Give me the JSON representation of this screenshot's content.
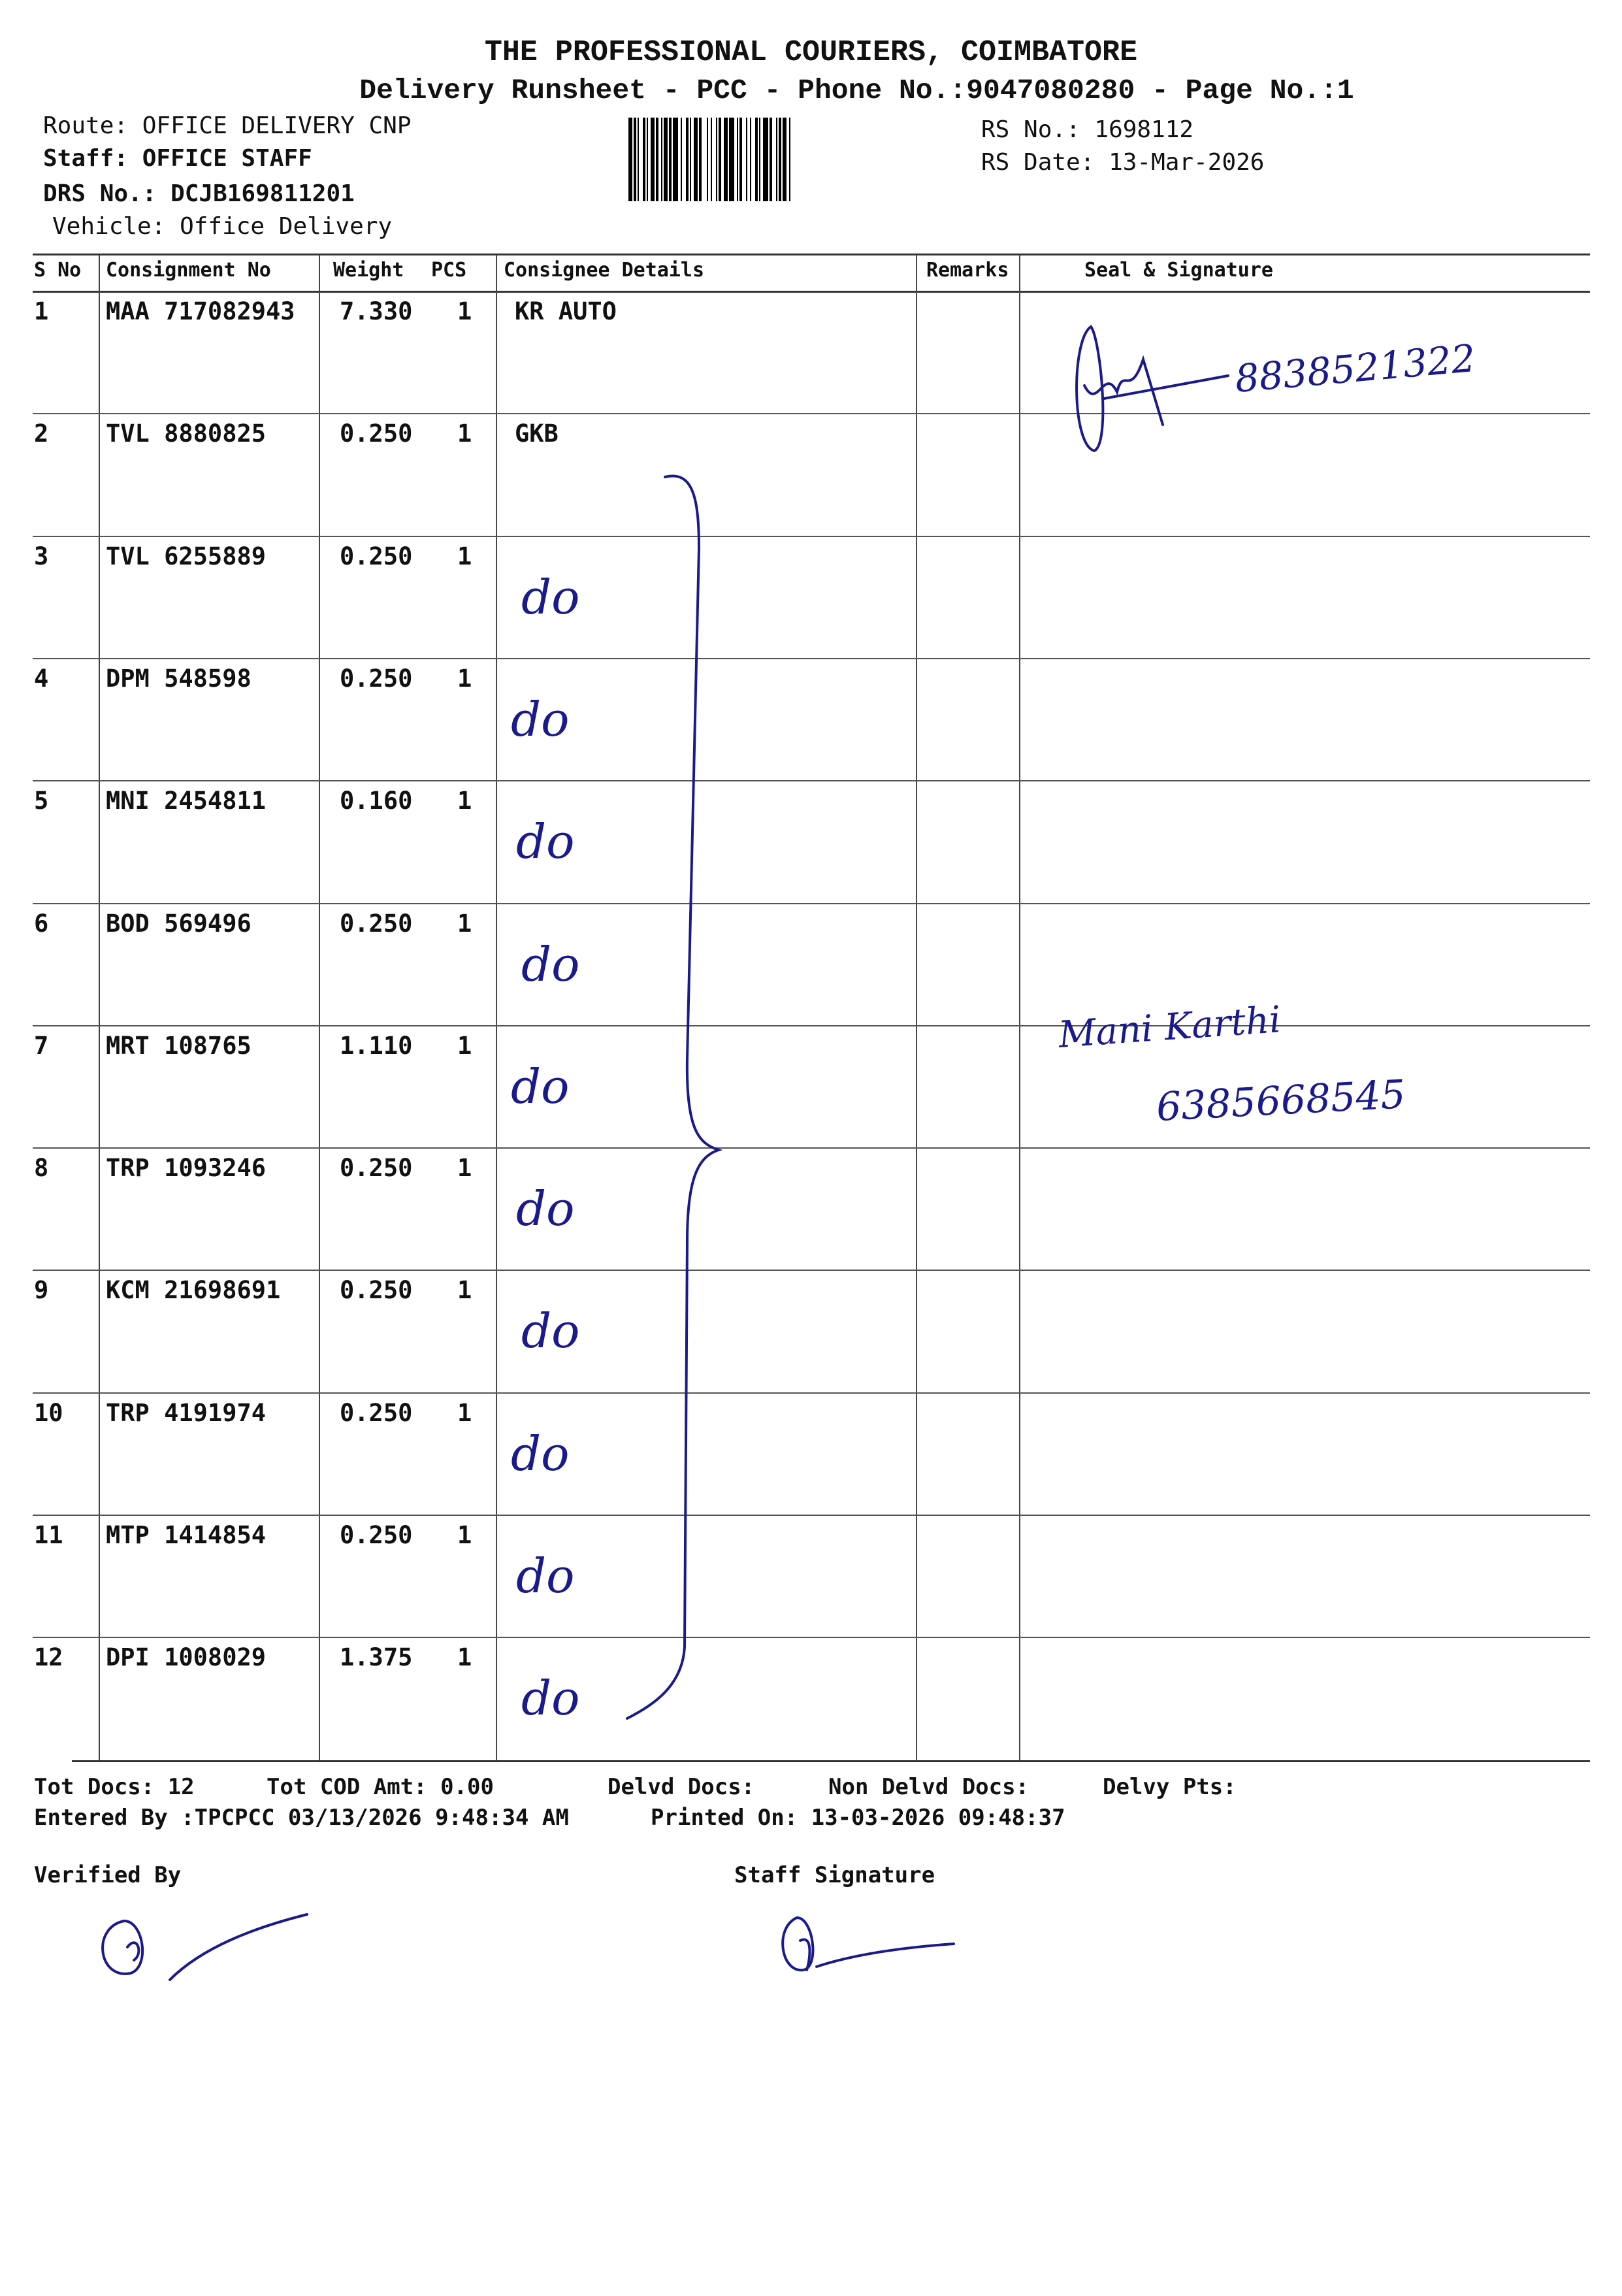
{
  "header": {
    "company": "THE PROFESSIONAL COURIERS, COIMBATORE",
    "subtitle": "Delivery Runsheet - PCC - Phone No.:9047080280 - Page No.:1",
    "route": "Route: OFFICE DELIVERY CNP",
    "staff": "Staff: OFFICE STAFF",
    "drs_no": "DRS No.: DCJB169811201",
    "vehicle": "Vehicle: Office Delivery",
    "rs_no": "RS No.: 1698112",
    "rs_date": "RS Date: 13-Mar-2026"
  },
  "table": {
    "columns": [
      "S No",
      "Consignment No",
      "Weight",
      "PCS",
      "Consignee Details",
      "Remarks",
      "Seal & Signature"
    ],
    "rows": [
      {
        "sno": "1",
        "consignment": "MAA 717082943",
        "weight": "7.330",
        "pcs": "1",
        "consignee": "KR AUTO",
        "handwritten": ""
      },
      {
        "sno": "2",
        "consignment": "TVL 8880825",
        "weight": "0.250",
        "pcs": "1",
        "consignee": "GKB",
        "handwritten": ""
      },
      {
        "sno": "3",
        "consignment": "TVL 6255889",
        "weight": "0.250",
        "pcs": "1",
        "consignee": "",
        "handwritten": "do"
      },
      {
        "sno": "4",
        "consignment": "DPM 548598",
        "weight": "0.250",
        "pcs": "1",
        "consignee": "",
        "handwritten": "do"
      },
      {
        "sno": "5",
        "consignment": "MNI 2454811",
        "weight": "0.160",
        "pcs": "1",
        "consignee": "",
        "handwritten": "do"
      },
      {
        "sno": "6",
        "consignment": "BOD 569496",
        "weight": "0.250",
        "pcs": "1",
        "consignee": "",
        "handwritten": "do"
      },
      {
        "sno": "7",
        "consignment": "MRT 108765",
        "weight": "1.110",
        "pcs": "1",
        "consignee": "",
        "handwritten": "do"
      },
      {
        "sno": "8",
        "consignment": "TRP 1093246",
        "weight": "0.250",
        "pcs": "1",
        "consignee": "",
        "handwritten": "do"
      },
      {
        "sno": "9",
        "consignment": "KCM 21698691",
        "weight": "0.250",
        "pcs": "1",
        "consignee": "",
        "handwritten": "do"
      },
      {
        "sno": "10",
        "consignment": "TRP 4191974",
        "weight": "0.250",
        "pcs": "1",
        "consignee": "",
        "handwritten": "do"
      },
      {
        "sno": "11",
        "consignment": "MTP 1414854",
        "weight": "0.250",
        "pcs": "1",
        "consignee": "",
        "handwritten": "do"
      },
      {
        "sno": "12",
        "consignment": "DPI 1008029",
        "weight": "1.375",
        "pcs": "1",
        "consignee": "",
        "handwritten": "do"
      }
    ],
    "handwritten_phone_1": "8838521322",
    "handwritten_name_2": "Mani Karthi",
    "handwritten_phone_2": "6385668545"
  },
  "footer": {
    "tot_docs": "Tot Docs:  12",
    "tot_cod": "Tot COD Amt:   0.00",
    "delvd_docs": "Delvd Docs:",
    "non_delvd_docs": "Non Delvd Docs:",
    "delvy_pts": "Delvy Pts:",
    "entered_by": "Entered By :TPCPCC 03/13/2026 9:48:34 AM",
    "printed_on": "Printed On: 13-03-2026 09:48:37",
    "verified_by": "Verified By",
    "staff_signature": "Staff Signature"
  },
  "colors": {
    "ink": "#1a1a8c",
    "print": "#111111"
  }
}
